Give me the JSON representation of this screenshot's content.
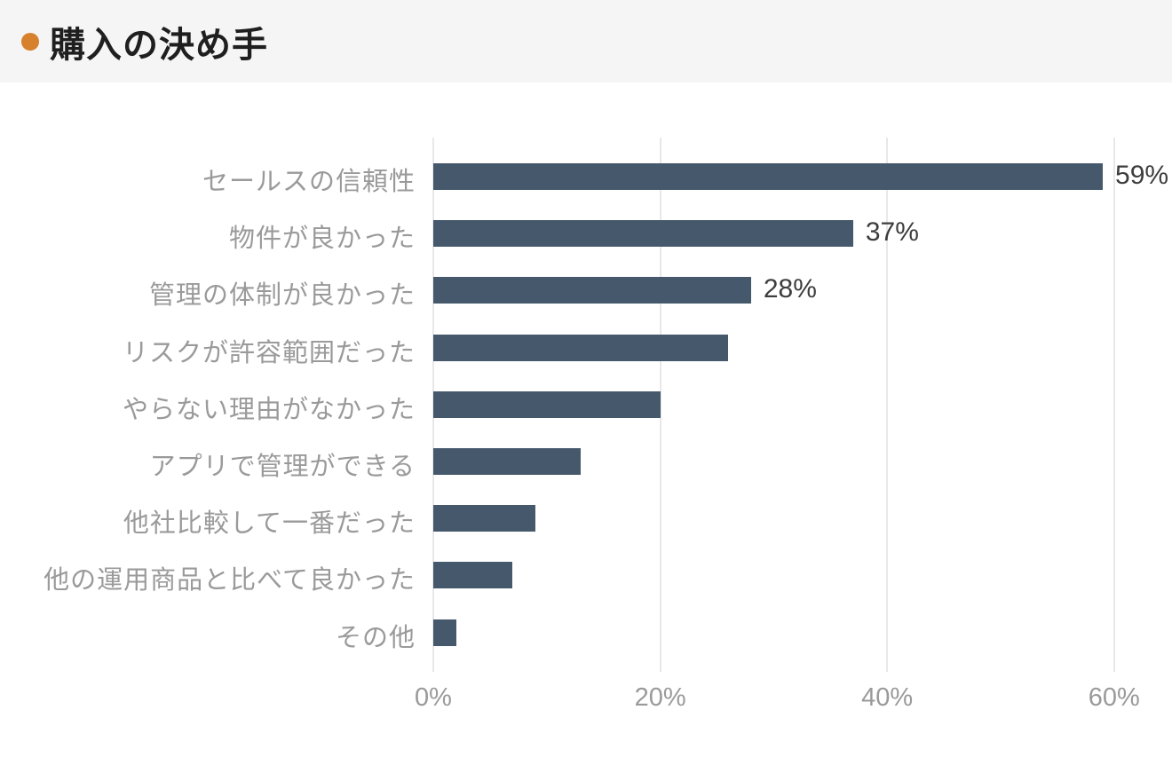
{
  "header": {
    "title": "購入の決め手",
    "bullet_color": "#d8812c",
    "background": "#f5f5f6"
  },
  "chart_data": {
    "type": "bar",
    "orientation": "horizontal",
    "title": "購入の決め手",
    "categories": [
      "セールスの信頼性",
      "物件が良かった",
      "管理の体制が良かった",
      "リスクが許容範囲だった",
      "やらない理由がなかった",
      "アプリで管理ができる",
      "他社比較して一番だった",
      "他の運用商品と比べて良かった",
      "その他"
    ],
    "values": [
      59,
      37,
      28,
      26,
      20,
      13,
      9,
      7,
      2
    ],
    "value_labels": [
      "59%",
      "37%",
      "28%",
      "",
      "",
      "",
      "",
      "",
      ""
    ],
    "xlabel": "",
    "ylabel": "",
    "x_tick_labels": [
      "0%",
      "20%",
      "40%",
      "60%"
    ],
    "x_tick_values": [
      0,
      20,
      40,
      60
    ],
    "xlim": [
      0,
      65
    ],
    "grid": true,
    "legend": false,
    "bar_color": "#46586c",
    "gridline_color": "#e8e8e8",
    "category_label_color": "#9a9a9a",
    "tick_label_color": "#9a9a9a",
    "value_label_color": "#3d3d3d"
  }
}
